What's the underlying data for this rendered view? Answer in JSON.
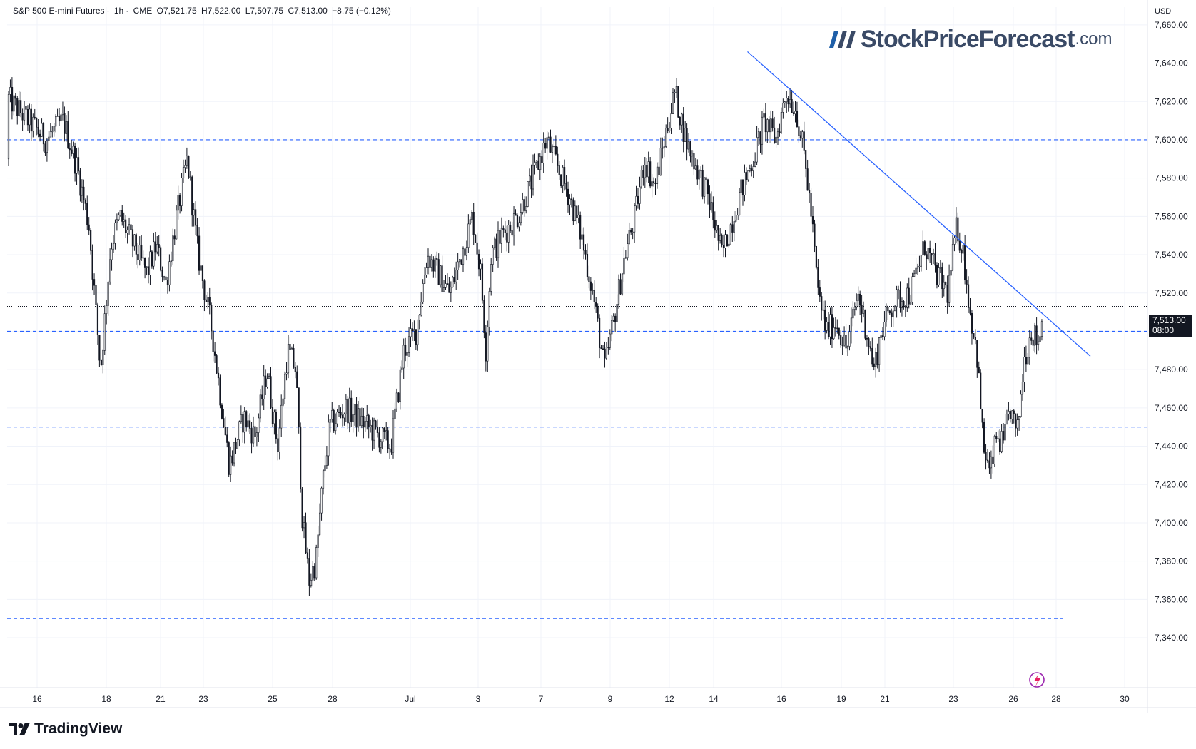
{
  "header": {
    "symbol": "S&P 500 E-mini Futures",
    "interval": "1h",
    "exchange": "CME",
    "open": "O7,521.75",
    "high": "H7,522.00",
    "low": "L7,507.75",
    "close": "C7,513.00",
    "change": "−8.75 (−0.12%)"
  },
  "currency": "USD",
  "logo": {
    "main": "StockPriceForecast",
    "tld": ".com"
  },
  "last_price": {
    "price": "7,513.00",
    "countdown": "08:00"
  },
  "brand": "TradingView",
  "colors": {
    "candle": "#131722",
    "level": "#2962ff",
    "trendline": "#2962ff",
    "grid": "#f0f3fa",
    "brand_logo": "#3a4a66"
  },
  "chart_data": {
    "type": "candlestick",
    "interval": "1h",
    "ylim": [
      7320,
      7670
    ],
    "y_ticks": [
      7340,
      7360,
      7380,
      7400,
      7420,
      7440,
      7460,
      7480,
      7500,
      7520,
      7540,
      7560,
      7580,
      7600,
      7620,
      7640,
      7660
    ],
    "y_tick_labels": [
      "7,340.00",
      "7,360.00",
      "7,380.00",
      "7,400.00",
      "7,420.00",
      "7,440.00",
      "7,460.00",
      "7,480.00",
      "7,500.00",
      "7,520.00",
      "7,540.00",
      "7,560.00",
      "7,580.00",
      "7,600.00",
      "7,620.00",
      "7,640.00",
      "7,660.00"
    ],
    "x_ticks": [
      "16",
      "18",
      "21",
      "23",
      "25",
      "28",
      "Jul",
      "3",
      "7",
      "9",
      "12",
      "14",
      "16",
      "19",
      "21",
      "23",
      "26",
      "28",
      "30"
    ],
    "last_price": 7513.0,
    "horizontal_levels": [
      7600,
      7500,
      7450,
      7350
    ],
    "trendline": [
      {
        "date": "Jul 15",
        "price": 7646
      },
      {
        "date": "Jul 29",
        "price": 7487
      }
    ],
    "price_path": [
      [
        "Jun 13",
        7590
      ],
      [
        "Jun 13",
        7650
      ],
      [
        "Jun 14",
        7620
      ],
      [
        "Jun 14",
        7630
      ],
      [
        "Jun 16",
        7600
      ],
      [
        "Jun 16",
        7610
      ],
      [
        "Jun 17",
        7585
      ],
      [
        "Jun 17",
        7555
      ],
      [
        "Jun 17",
        7480
      ],
      [
        "Jun 18",
        7545
      ],
      [
        "Jun 18",
        7560
      ],
      [
        "Jun 20",
        7530
      ],
      [
        "Jun 20",
        7545
      ],
      [
        "Jun 21",
        7525
      ],
      [
        "Jun 21",
        7560
      ],
      [
        "Jun 22",
        7590
      ],
      [
        "Jun 22",
        7540
      ],
      [
        "Jun 23",
        7500
      ],
      [
        "Jun 23",
        7430
      ],
      [
        "Jun 24",
        7455
      ],
      [
        "Jun 24",
        7445
      ],
      [
        "Jun 24",
        7480
      ],
      [
        "Jun 25",
        7440
      ],
      [
        "Jun 25",
        7490
      ],
      [
        "Jun 26",
        7480
      ],
      [
        "Jun 26",
        7400
      ],
      [
        "Jun 26",
        7370
      ],
      [
        "Jun 27",
        7380
      ],
      [
        "Jun 27",
        7420
      ],
      [
        "Jun 27",
        7450
      ],
      [
        "Jun 28",
        7460
      ],
      [
        "Jun 30",
        7440
      ],
      [
        "Jun 30",
        7490
      ],
      [
        "Jul 1",
        7500
      ],
      [
        "Jul 1",
        7540
      ],
      [
        "Jul 1",
        7530
      ],
      [
        "Jul 2",
        7520
      ],
      [
        "Jul 2",
        7540
      ],
      [
        "Jul 2",
        7560
      ],
      [
        "Jul 3",
        7530
      ],
      [
        "Jul 3",
        7490
      ],
      [
        "Jul 3",
        7540
      ],
      [
        "Jul 4",
        7550
      ],
      [
        "Jul 5",
        7560
      ],
      [
        "Jul 6",
        7580
      ],
      [
        "Jul 7",
        7600
      ],
      [
        "Jul 7",
        7585
      ],
      [
        "Jul 7",
        7570
      ],
      [
        "Jul 8",
        7550
      ],
      [
        "Jul 8",
        7520
      ],
      [
        "Jul 8",
        7480
      ],
      [
        "Jul 9",
        7510
      ],
      [
        "Jul 9",
        7540
      ],
      [
        "Jul 10",
        7560
      ],
      [
        "Jul 10",
        7590
      ],
      [
        "Jul 11",
        7575
      ],
      [
        "Jul 11",
        7600
      ],
      [
        "Jul 12",
        7625
      ],
      [
        "Jul 12",
        7600
      ],
      [
        "Jul 13",
        7585
      ],
      [
        "Jul 13",
        7570
      ],
      [
        "Jul 14",
        7540
      ],
      [
        "Jul 14",
        7570
      ],
      [
        "Jul 15",
        7590
      ],
      [
        "Jul 15",
        7610
      ],
      [
        "Jul 15",
        7600
      ],
      [
        "Jul 16",
        7625
      ],
      [
        "Jul 16",
        7615
      ],
      [
        "Jul 17",
        7590
      ],
      [
        "Jul 17",
        7560
      ],
      [
        "Jul 17",
        7520
      ],
      [
        "Jul 18",
        7500
      ],
      [
        "Jul 18",
        7505
      ],
      [
        "Jul 19",
        7490
      ],
      [
        "Jul 19",
        7520
      ],
      [
        "Jul 20",
        7500
      ],
      [
        "Jul 20",
        7480
      ],
      [
        "Jul 20",
        7500
      ],
      [
        "Jul 21",
        7515
      ],
      [
        "Jul 21",
        7520
      ],
      [
        "Jul 22",
        7545
      ],
      [
        "Jul 22",
        7530
      ],
      [
        "Jul 22",
        7520
      ],
      [
        "Jul 23",
        7555
      ],
      [
        "Jul 23",
        7540
      ],
      [
        "Jul 23",
        7510
      ],
      [
        "Jul 24",
        7490
      ],
      [
        "Jul 24",
        7440
      ],
      [
        "Jul 24",
        7425
      ],
      [
        "Jul 25",
        7445
      ],
      [
        "Jul 25",
        7440
      ],
      [
        "Jul 25",
        7460
      ],
      [
        "Jul 26",
        7445
      ],
      [
        "Jul 26",
        7485
      ],
      [
        "Jul 26",
        7500
      ],
      [
        "Jul 27",
        7495
      ],
      [
        "Jul 27",
        7515
      ],
      [
        "Jul 27",
        7513
      ]
    ]
  }
}
